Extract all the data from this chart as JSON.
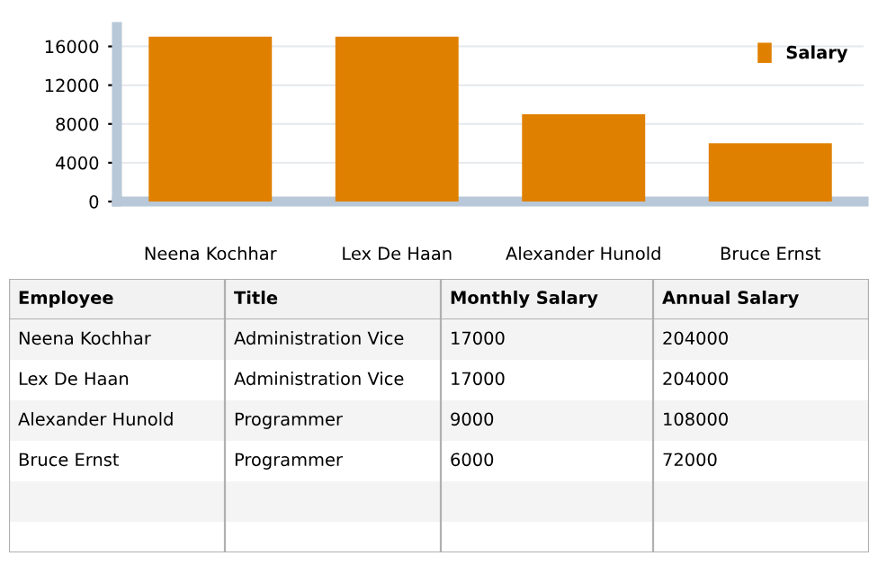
{
  "chart_data": [
    {
      "type": "bar",
      "categories": [
        "Neena Kochhar",
        "Lex De Haan",
        "Alexander Hunold",
        "Bruce Ernst"
      ],
      "series": [
        {
          "name": "Salary",
          "color": "#e08000",
          "values": [
            17000,
            17000,
            9000,
            6000
          ]
        }
      ],
      "ylim": [
        0,
        18000
      ],
      "yticks": [
        0,
        4000,
        8000,
        12000,
        16000
      ],
      "grid": "y",
      "legend": "top right"
    },
    {
      "type": "other",
      "categories": [
        "Employee",
        "Title",
        "Monthly Salary",
        "Annual Salary"
      ],
      "annotations": [
        "Neena Kochhar",
        "Administration Vice",
        "17000",
        "204000",
        "Lex De Haan",
        "Administration Vice",
        "17000",
        "204000",
        "Alexander Hunold",
        "Programmer",
        "9000",
        "108000",
        "Bruce Ernst",
        "Programmer",
        "6000",
        "72000"
      ]
    }
  ]
}
